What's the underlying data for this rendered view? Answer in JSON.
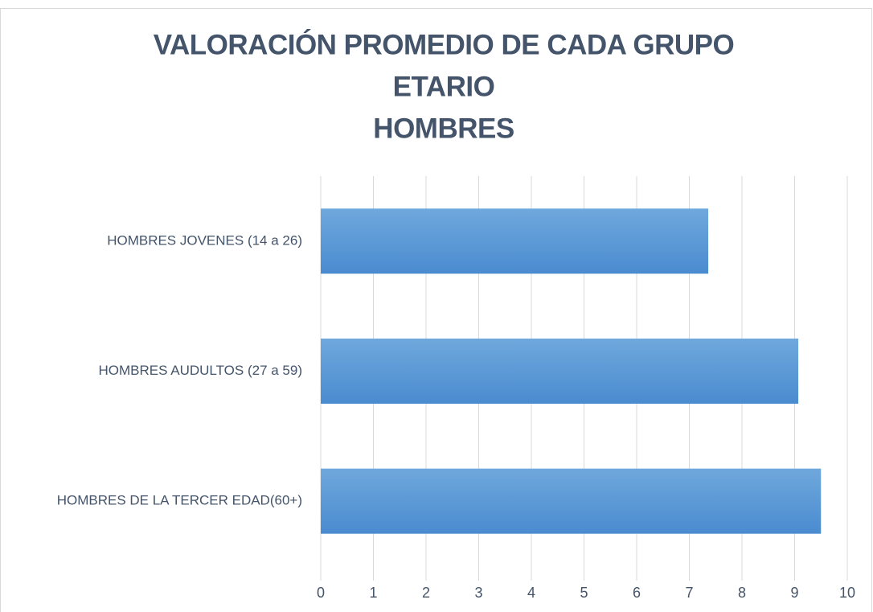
{
  "chart_data": {
    "type": "hbar",
    "title": [
      "VALORACIÓN PROMEDIO DE CADA GRUPO",
      "ETARIO",
      "HOMBRES"
    ],
    "categories": [
      "HOMBRES JOVENES (14 a 26)",
      "HOMBRES AUDULTOS (27 a 59)",
      "HOMBRES DE LA TERCER EDAD(60+)"
    ],
    "values": [
      7.36,
      9.07,
      9.5
    ],
    "color": "#5b9bd5",
    "xlim": [
      0,
      10
    ],
    "xticks": [
      0,
      1,
      2,
      3,
      4,
      5,
      6,
      7,
      8,
      9,
      10
    ],
    "grid": true
  }
}
